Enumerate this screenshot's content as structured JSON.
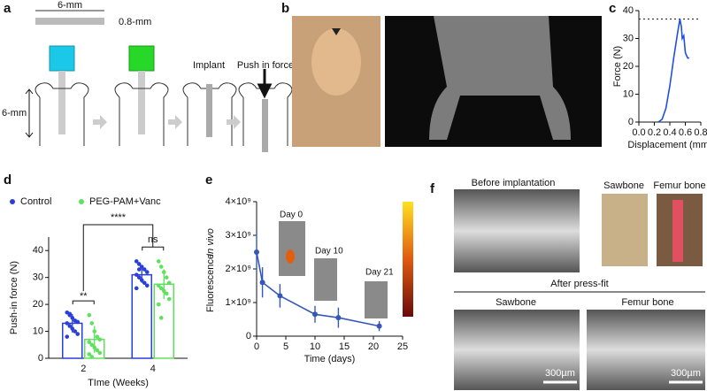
{
  "panel_labels": [
    "a",
    "b",
    "c",
    "d",
    "e",
    "f"
  ],
  "schematic": {
    "length_label": "6-mm",
    "diameter_label": "0.8-mm",
    "height_label": "6-mm",
    "implant_label": "Implant",
    "force_label": "Push in force"
  },
  "images": {
    "before_title": "Before implantation",
    "sawbone": "Sawbone",
    "femur": "Femur bone",
    "after_title": "After press-fit",
    "after_sawbone": "Sawbone",
    "after_femur": "Femur bone",
    "scale_bar_1": "300µm",
    "scale_bar_2": "300µm",
    "day_labels": [
      "Day 0",
      "Day 10",
      "Day 21"
    ]
  },
  "chart_data": [
    {
      "type": "line",
      "x_label": "Displacement (mm)",
      "y_label": "Force (N)",
      "color": "#1f4fe0",
      "x": [
        0.25,
        0.3,
        0.35,
        0.4,
        0.45,
        0.5,
        0.53,
        0.55,
        0.56,
        0.58,
        0.6,
        0.63,
        0.65
      ],
      "values": [
        0,
        1,
        5,
        13,
        23,
        32,
        37,
        34,
        30,
        31,
        25,
        23,
        23
      ],
      "reference_line": 37,
      "xlim": [
        0,
        0.8
      ],
      "xticks": [
        {
          "value": 0,
          "label": "0.0"
        },
        0.2,
        0.4,
        0.6,
        0.8
      ],
      "ylim": [
        0,
        40
      ],
      "yticks": [
        0,
        10,
        20,
        30,
        40
      ]
    },
    {
      "type": "bar",
      "x_label": "TIme (Weeks)",
      "y_label": "Push-in force (N)",
      "categories": [
        "2",
        "4"
      ],
      "series": [
        {
          "name": "Control",
          "color": "#2a3fd8",
          "values": [
            13,
            31
          ],
          "errors": [
            3.5,
            3
          ],
          "points": [
            [
              17,
              16,
              15,
              14,
              13.5,
              13,
              12,
              11,
              10,
              9,
              8,
              16.5
            ],
            [
              36,
              35,
              34,
              33,
              32,
              31,
              30,
              29,
              28,
              27,
              26,
              33
            ]
          ]
        },
        {
          "name": "PEG-PAM+Vanc",
          "color": "#5fe05f",
          "values": [
            7,
            27.5
          ],
          "errors": [
            5,
            5.5
          ],
          "points": [
            [
              16,
              13,
              10,
              8,
              7,
              6,
              5,
              4,
              3,
              2,
              1.5,
              0.5
            ],
            [
              36,
              34,
              32,
              30,
              28,
              27,
              26,
              25,
              24,
              22,
              20,
              15
            ]
          ]
        }
      ],
      "annotations": [
        "**",
        "****",
        "ns"
      ],
      "ylim": [
        0,
        45
      ],
      "yticks": [
        0,
        10,
        20,
        30,
        40
      ]
    },
    {
      "type": "line",
      "x_label": "Time (days)",
      "y_label_italic": "In vivo",
      "y_label": "Fluorescence",
      "color": "#3558b8",
      "x": [
        0,
        1,
        4,
        10,
        14,
        21
      ],
      "values": [
        2500000000,
        1600000000,
        1200000000,
        650000000,
        550000000,
        300000000
      ],
      "errors": [
        600000000,
        450000000,
        350000000,
        250000000,
        300000000,
        150000000
      ],
      "xlim": [
        0,
        25
      ],
      "xticks": [
        0,
        5,
        10,
        15,
        20,
        25
      ],
      "ylim": [
        0,
        4000000000
      ],
      "yticks": [
        0,
        {
          "value": 1000000000,
          "label": "1×10⁹"
        },
        {
          "value": 2000000000,
          "label": "2×10⁹"
        },
        {
          "value": 3000000000,
          "label": "3×10⁹"
        },
        {
          "value": 4000000000,
          "label": "4×10⁹"
        }
      ]
    }
  ]
}
